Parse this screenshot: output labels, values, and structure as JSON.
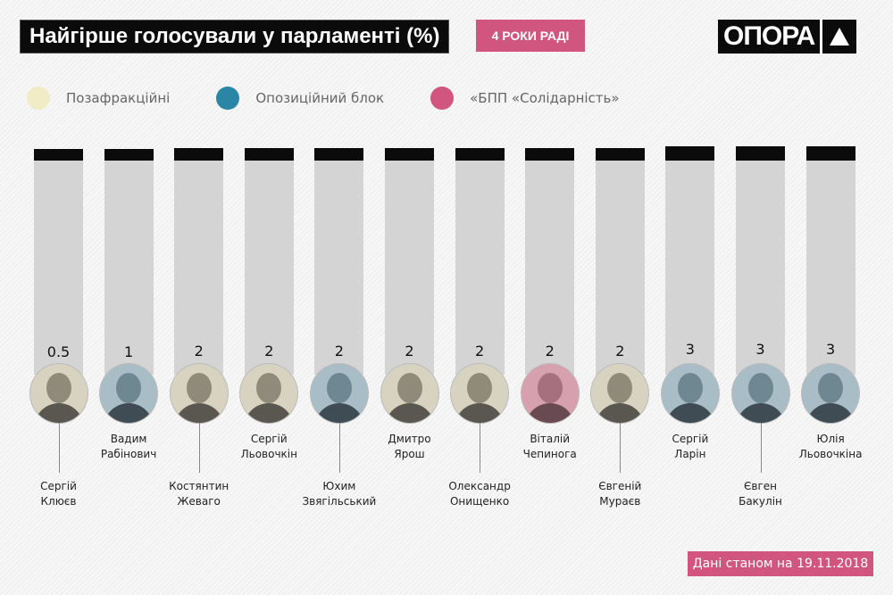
{
  "header": {
    "title": "Найгірше голосували у парламенті (%)",
    "badge": "4 РОКИ РАДІ",
    "logo": "ОПОРА"
  },
  "footer": {
    "note": "Дані станом на 19.11.2018"
  },
  "colors": {
    "non_faction": "#f1ebc6",
    "opposition": "#2a86a4",
    "bpp": "#d0567f",
    "bar": "#d4d4d4",
    "fill": "#0b0b0b"
  },
  "chart_data": {
    "type": "bar",
    "title": "Найгірше голосували у парламенті (%)",
    "legend": [
      {
        "key": "non_faction",
        "label": "Позафракційні"
      },
      {
        "key": "opposition",
        "label": "Опозиційний блок"
      },
      {
        "key": "bpp",
        "label": "«БПП «Солідарність»"
      }
    ],
    "ylim": [
      0,
      100
    ],
    "categories": [
      {
        "first": "Сергій",
        "last": "Клюєв",
        "faction": "non_faction"
      },
      {
        "first": "Вадим",
        "last": "Рабінович",
        "faction": "opposition"
      },
      {
        "first": "Костянтин",
        "last": "Жеваго",
        "faction": "non_faction"
      },
      {
        "first": "Сергій",
        "last": "Льовочкін",
        "faction": "non_faction"
      },
      {
        "first": "Юхим",
        "last": "Звягільський",
        "faction": "opposition"
      },
      {
        "first": "Дмитро",
        "last": "Ярош",
        "faction": "non_faction"
      },
      {
        "first": "Олександр",
        "last": "Онищенко",
        "faction": "non_faction"
      },
      {
        "first": "Віталій",
        "last": "Чепинога",
        "faction": "bpp"
      },
      {
        "first": "Євгеній",
        "last": "Мураєв",
        "faction": "non_faction"
      },
      {
        "first": "Сергій",
        "last": "Ларін",
        "faction": "opposition"
      },
      {
        "first": "Євген",
        "last": "Бакулін",
        "faction": "opposition"
      },
      {
        "first": "Юлія",
        "last": "Льовочкіна",
        "faction": "opposition"
      }
    ],
    "values": [
      "0.5",
      "1",
      "2",
      "2",
      "2",
      "2",
      "2",
      "2",
      "2",
      "3",
      "3",
      "3"
    ]
  }
}
